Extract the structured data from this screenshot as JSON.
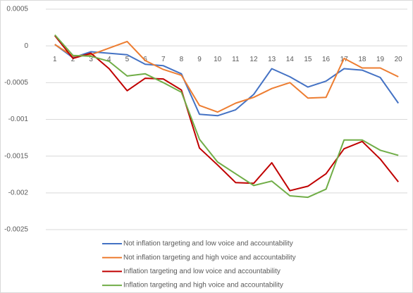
{
  "chart_data": {
    "type": "line",
    "categories": [
      "1",
      "2",
      "3",
      "4",
      "5",
      "6",
      "7",
      "8",
      "9",
      "10",
      "11",
      "12",
      "13",
      "14",
      "15",
      "16",
      "17",
      "18",
      "19",
      "20"
    ],
    "ylim": [
      -0.0025,
      0.0005
    ],
    "yticks": [
      0.0005,
      0,
      -0.0005,
      -0.001,
      -0.0015,
      -0.002,
      -0.0025
    ],
    "grid": true,
    "legend": "bottom",
    "series": [
      {
        "name": "Not inflation targeting and  low voice and accountability",
        "color": "#4472c4",
        "values": [
          2e-05,
          -0.00016,
          -8e-05,
          -0.0001,
          -0.00012,
          -0.00025,
          -0.00027,
          -0.00038,
          -0.00093,
          -0.00095,
          -0.00087,
          -0.00066,
          -0.00031,
          -0.00042,
          -0.00056,
          -0.00048,
          -0.00031,
          -0.00033,
          -0.00043,
          -0.00078
        ]
      },
      {
        "name": "Not inflation targeting and  high voice and accountability",
        "color": "#ed7d31",
        "values": [
          2e-05,
          -0.00014,
          -0.00012,
          -3e-05,
          6e-05,
          -0.0002,
          -0.00032,
          -0.0004,
          -0.00081,
          -0.0009,
          -0.00078,
          -0.0007,
          -0.00058,
          -0.0005,
          -0.00071,
          -0.0007,
          -0.00017,
          -0.0003,
          -0.0003,
          -0.00042
        ]
      },
      {
        "name": "Inflation targeting and  low voice and accountability",
        "color": "#c00000",
        "values": [
          0.00014,
          -0.00017,
          -0.0001,
          -0.00031,
          -0.00061,
          -0.00044,
          -0.00045,
          -0.0006,
          -0.00139,
          -0.00162,
          -0.00186,
          -0.00187,
          -0.00159,
          -0.00197,
          -0.00191,
          -0.00174,
          -0.0014,
          -0.0013,
          -0.00154,
          -0.00185
        ]
      },
      {
        "name": "Inflation targeting and  high voice and accountability",
        "color": "#70ad47",
        "values": [
          0.00015,
          -0.00013,
          -0.00014,
          -0.00021,
          -0.00041,
          -0.00038,
          -0.0005,
          -0.00063,
          -0.00127,
          -0.00158,
          -0.00174,
          -0.0019,
          -0.00184,
          -0.00204,
          -0.00206,
          -0.00195,
          -0.00128,
          -0.00128,
          -0.00142,
          -0.00149
        ]
      }
    ]
  }
}
